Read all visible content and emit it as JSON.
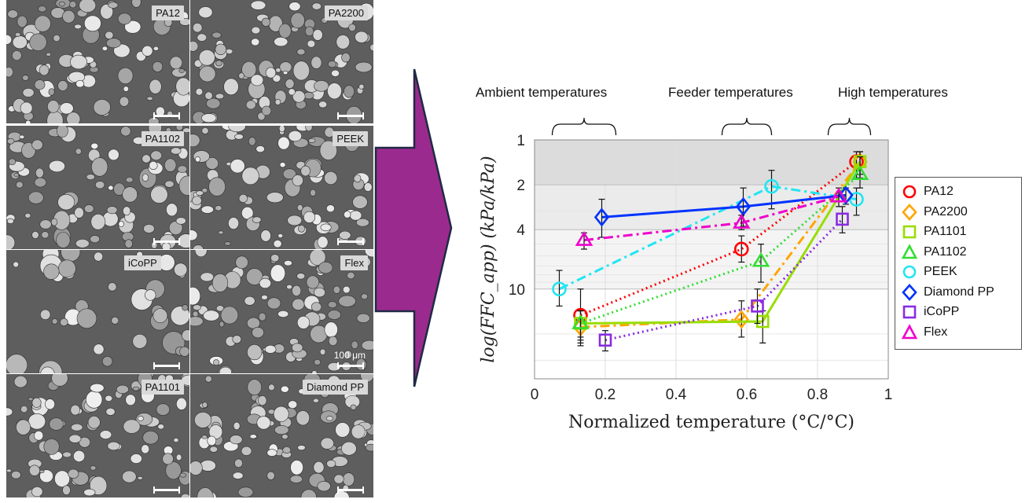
{
  "micrographs": [
    {
      "label": "PA12",
      "scale_label": ""
    },
    {
      "label": "PA2200",
      "scale_label": ""
    },
    {
      "label": "PA1102",
      "scale_label": ""
    },
    {
      "label": "PEEK",
      "scale_label": ""
    },
    {
      "label": "iCoPP",
      "scale_label": ""
    },
    {
      "label": "Flex",
      "scale_label": "100 μm"
    },
    {
      "label": "PA1101",
      "scale_label": ""
    },
    {
      "label": "Diamond PP",
      "scale_label": ""
    }
  ],
  "colors": {
    "arrow": "#9b2a8e",
    "arrow_stroke": "#1f2a44"
  },
  "chart_data": {
    "type": "line",
    "xlabel": "Normalized temperature (°C/°C)",
    "ylabel": "log(FFC_app) (kPa/kPa)",
    "xlim": [
      0,
      1
    ],
    "ylim": [
      1,
      40
    ],
    "y_scale": "log",
    "y_reversed": true,
    "x_ticks": [
      "0",
      "0.2",
      "0.4",
      "0.6",
      "0.8",
      "1"
    ],
    "y_ticks": [
      "1",
      "2",
      "4",
      "10"
    ],
    "bands": [
      {
        "from": 1,
        "to": 2,
        "color": "#dcdcdc"
      },
      {
        "from": 2,
        "to": 4,
        "color": "#ebebeb"
      },
      {
        "from": 4,
        "to": 10,
        "color": "#f4f4f4"
      }
    ],
    "groups": [
      {
        "label": "Ambient temperatures",
        "x_from": 0.05,
        "x_to": 0.23
      },
      {
        "label": "Feeder temperatures",
        "x_from": 0.53,
        "x_to": 0.67
      },
      {
        "label": "High temperatures",
        "x_from": 0.83,
        "x_to": 0.95
      }
    ],
    "legend_position": "right",
    "series": [
      {
        "name": "PA12",
        "color": "#ff0000",
        "marker": "circle",
        "dash": "dotted",
        "x": [
          0.13,
          0.585,
          0.91
        ],
        "y": [
          15,
          5.4,
          1.4
        ],
        "err": [
          [
            10,
            24
          ],
          [
            4.4,
            6.6
          ],
          [
            1.2,
            1.8
          ]
        ]
      },
      {
        "name": "PA2200",
        "color": "#ffa500",
        "marker": "diamond",
        "dash": "dashdot",
        "x": [
          0.13,
          0.585,
          0.92
        ],
        "y": [
          18,
          16,
          1.4
        ],
        "err": [
          [
            14,
            22
          ],
          [
            12,
            21
          ],
          [
            1.2,
            1.8
          ]
        ]
      },
      {
        "name": "PA1101",
        "color": "#99dd00",
        "marker": "square",
        "dash": "solid",
        "x": [
          0.13,
          0.645,
          0.92
        ],
        "y": [
          17,
          16.5,
          1.4
        ],
        "err": [
          [
            14,
            21
          ],
          [
            14,
            23
          ],
          [
            1.2,
            1.7
          ]
        ]
      },
      {
        "name": "PA1102",
        "color": "#33dd33",
        "marker": "triangle",
        "dash": "dotted",
        "x": [
          0.13,
          0.64,
          0.92
        ],
        "y": [
          17,
          6.5,
          1.7
        ],
        "err": [
          [
            14,
            23
          ],
          [
            5,
            9
          ],
          [
            1.3,
            2.1
          ]
        ]
      },
      {
        "name": "PEEK",
        "color": "#22e5f2",
        "marker": "circle",
        "dash": "dashdot",
        "x": [
          0.07,
          0.67,
          0.91
        ],
        "y": [
          10,
          2.05,
          2.5
        ],
        "err": [
          [
            7.5,
            13
          ],
          [
            1.6,
            2.9
          ],
          [
            2.1,
            3.2
          ]
        ]
      },
      {
        "name": "Diamond PP",
        "color": "#0033ff",
        "marker": "diamond",
        "dash": "solid",
        "x": [
          0.19,
          0.59,
          0.88
        ],
        "y": [
          3.3,
          2.8,
          2.35
        ],
        "err": [
          [
            2.5,
            4.5
          ],
          [
            2.1,
            3.8
          ],
          [
            2.1,
            2.7
          ]
        ]
      },
      {
        "name": "iCoPP",
        "color": "#8a2be2",
        "marker": "square",
        "dash": "dotted",
        "x": [
          0.2,
          0.63,
          0.87
        ],
        "y": [
          22,
          13,
          3.4
        ],
        "err": [
          [
            19,
            26
          ],
          [
            10,
            17
          ],
          [
            2.8,
            4.2
          ]
        ]
      },
      {
        "name": "Flex",
        "color": "#ee00cc",
        "marker": "triangle",
        "dash": "dashdot",
        "x": [
          0.14,
          0.585,
          0.86
        ],
        "y": [
          4.7,
          3.6,
          2.4
        ],
        "err": [
          [
            4.2,
            5.4
          ],
          [
            3.2,
            4
          ],
          [
            2.1,
            2.8
          ]
        ]
      }
    ]
  }
}
